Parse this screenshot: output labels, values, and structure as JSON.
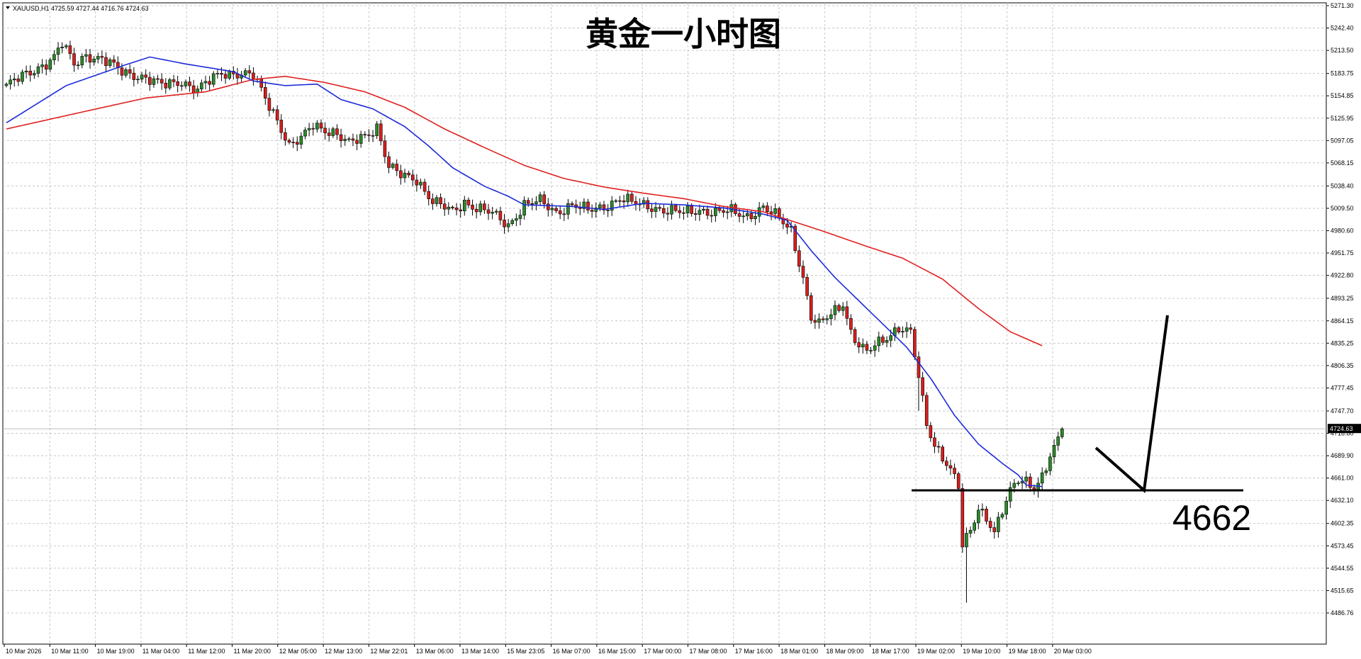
{
  "chart_data": {
    "type": "candlestick",
    "symbol_header": "XAUUSD,H1  4725.59 4727.44 4716.76 4724.63",
    "title": "黄金一小时图",
    "annotation_level": "4662",
    "current_price_label": "4724.63",
    "ylim": [
      4486.76,
      5271.3
    ],
    "y_ticks": [
      "5271.30",
      "5242.40",
      "5213.50",
      "5183.75",
      "5154.85",
      "5125.95",
      "5097.05",
      "5068.15",
      "5038.40",
      "5009.50",
      "4980.60",
      "4951.75",
      "4922.80",
      "4893.25",
      "4864.15",
      "4835.25",
      "4806.35",
      "4777.45",
      "4747.70",
      "4718.80",
      "4689.90",
      "4661.00",
      "4632.10",
      "4602.35",
      "4573.45",
      "4544.55",
      "4515.65",
      "4486.76"
    ],
    "x_ticks": [
      "10 Mar 2026",
      "10 Mar 11:00",
      "10 Mar 19:00",
      "11 Mar 04:00",
      "11 Mar 12:00",
      "11 Mar 20:00",
      "12 Mar 05:00",
      "12 Mar 13:00",
      "12 Mar 22:01",
      "13 Mar 06:00",
      "13 Mar 14:00",
      "15 Mar 23:05",
      "16 Mar 07:00",
      "16 Mar 15:00",
      "17 Mar 00:00",
      "17 Mar 08:00",
      "17 Mar 16:00",
      "18 Mar 01:00",
      "18 Mar 09:00",
      "18 Mar 17:00",
      "19 Mar 02:00",
      "19 Mar 10:00",
      "19 Mar 18:00",
      "20 Mar 03:00"
    ],
    "grid": true,
    "colors": {
      "up": "#2a8a2a",
      "down": "#d81e1e",
      "wick": "#000000",
      "ma_fast": "#1c2bd8",
      "ma_slow": "#e02020",
      "annotation": "#000000",
      "grid": "#c8c8c8"
    },
    "close_anchors": [
      [
        0,
        5168
      ],
      [
        6,
        5185
      ],
      [
        10,
        5198
      ],
      [
        12,
        5205
      ],
      [
        14,
        5222
      ],
      [
        17,
        5195
      ],
      [
        20,
        5208
      ],
      [
        24,
        5202
      ],
      [
        29,
        5186
      ],
      [
        34,
        5180
      ],
      [
        39,
        5168
      ],
      [
        44,
        5174
      ],
      [
        48,
        5162
      ],
      [
        54,
        5185
      ],
      [
        58,
        5184
      ],
      [
        62,
        5180
      ],
      [
        65,
        5152
      ],
      [
        68,
        5125
      ],
      [
        71,
        5090
      ],
      [
        74,
        5098
      ],
      [
        77,
        5118
      ],
      [
        82,
        5108
      ],
      [
        86,
        5092
      ],
      [
        90,
        5104
      ],
      [
        93,
        5115
      ],
      [
        96,
        5062
      ],
      [
        99,
        5052
      ],
      [
        103,
        5048
      ],
      [
        107,
        5018
      ],
      [
        112,
        5005
      ],
      [
        115,
        5018
      ],
      [
        118,
        5010
      ],
      [
        122,
        5002
      ],
      [
        126,
        4988
      ],
      [
        130,
        5014
      ],
      [
        134,
        5018
      ],
      [
        138,
        5005
      ],
      [
        142,
        5014
      ],
      [
        146,
        5006
      ],
      [
        150,
        5012
      ],
      [
        154,
        5022
      ],
      [
        158,
        5015
      ],
      [
        162,
        5012
      ],
      [
        166,
        5006
      ],
      [
        170,
        5003
      ],
      [
        174,
        5008
      ],
      [
        178,
        5004
      ],
      [
        182,
        5005
      ],
      [
        186,
        5000
      ],
      [
        190,
        5010
      ],
      [
        194,
        4996
      ],
      [
        197,
        4982
      ],
      [
        200,
        4920
      ],
      [
        202,
        4868
      ],
      [
        204,
        4858
      ],
      [
        206,
        4868
      ],
      [
        208,
        4878
      ],
      [
        210,
        4888
      ],
      [
        212,
        4850
      ],
      [
        214,
        4832
      ],
      [
        216,
        4822
      ],
      [
        218,
        4832
      ],
      [
        221,
        4844
      ],
      [
        224,
        4856
      ],
      [
        227,
        4848
      ],
      [
        229,
        4790
      ],
      [
        231,
        4730
      ],
      [
        233,
        4705
      ],
      [
        235,
        4690
      ],
      [
        237,
        4672
      ],
      [
        239,
        4650
      ],
      [
        240,
        4572
      ],
      [
        242,
        4592
      ],
      [
        244,
        4622
      ],
      [
        246,
        4612
      ],
      [
        248,
        4592
      ],
      [
        250,
        4618
      ],
      [
        252,
        4642
      ],
      [
        254,
        4658
      ],
      [
        256,
        4658
      ],
      [
        258,
        4650
      ],
      [
        260,
        4663
      ],
      [
        262,
        4688
      ],
      [
        264,
        4708
      ],
      [
        265,
        4724.63
      ]
    ],
    "ma_fast_anchors": [
      [
        0,
        5120
      ],
      [
        15,
        5168
      ],
      [
        30,
        5195
      ],
      [
        36,
        5205
      ],
      [
        45,
        5196
      ],
      [
        57,
        5186
      ],
      [
        62,
        5174
      ],
      [
        70,
        5168
      ],
      [
        78,
        5170
      ],
      [
        84,
        5150
      ],
      [
        92,
        5138
      ],
      [
        100,
        5115
      ],
      [
        106,
        5090
      ],
      [
        112,
        5062
      ],
      [
        120,
        5038
      ],
      [
        126,
        5025
      ],
      [
        130,
        5014
      ],
      [
        142,
        5012
      ],
      [
        150,
        5008
      ],
      [
        160,
        5016
      ],
      [
        170,
        5014
      ],
      [
        180,
        5010
      ],
      [
        190,
        5002
      ],
      [
        196,
        4994
      ],
      [
        202,
        4955
      ],
      [
        208,
        4920
      ],
      [
        214,
        4890
      ],
      [
        220,
        4860
      ],
      [
        226,
        4830
      ],
      [
        232,
        4790
      ],
      [
        238,
        4742
      ],
      [
        244,
        4705
      ],
      [
        250,
        4680
      ],
      [
        254,
        4665
      ],
      [
        256,
        4652
      ],
      [
        260,
        4650
      ]
    ],
    "ma_slow_anchors": [
      [
        0,
        5112
      ],
      [
        20,
        5135
      ],
      [
        35,
        5152
      ],
      [
        50,
        5160
      ],
      [
        62,
        5176
      ],
      [
        70,
        5180
      ],
      [
        80,
        5172
      ],
      [
        90,
        5160
      ],
      [
        100,
        5140
      ],
      [
        110,
        5112
      ],
      [
        120,
        5088
      ],
      [
        130,
        5065
      ],
      [
        140,
        5048
      ],
      [
        150,
        5037
      ],
      [
        160,
        5029
      ],
      [
        170,
        5022
      ],
      [
        180,
        5012
      ],
      [
        190,
        5005
      ],
      [
        196,
        4995
      ],
      [
        205,
        4980
      ],
      [
        215,
        4962
      ],
      [
        225,
        4945
      ],
      [
        235,
        4918
      ],
      [
        244,
        4880
      ],
      [
        252,
        4850
      ],
      [
        260,
        4832
      ]
    ]
  }
}
